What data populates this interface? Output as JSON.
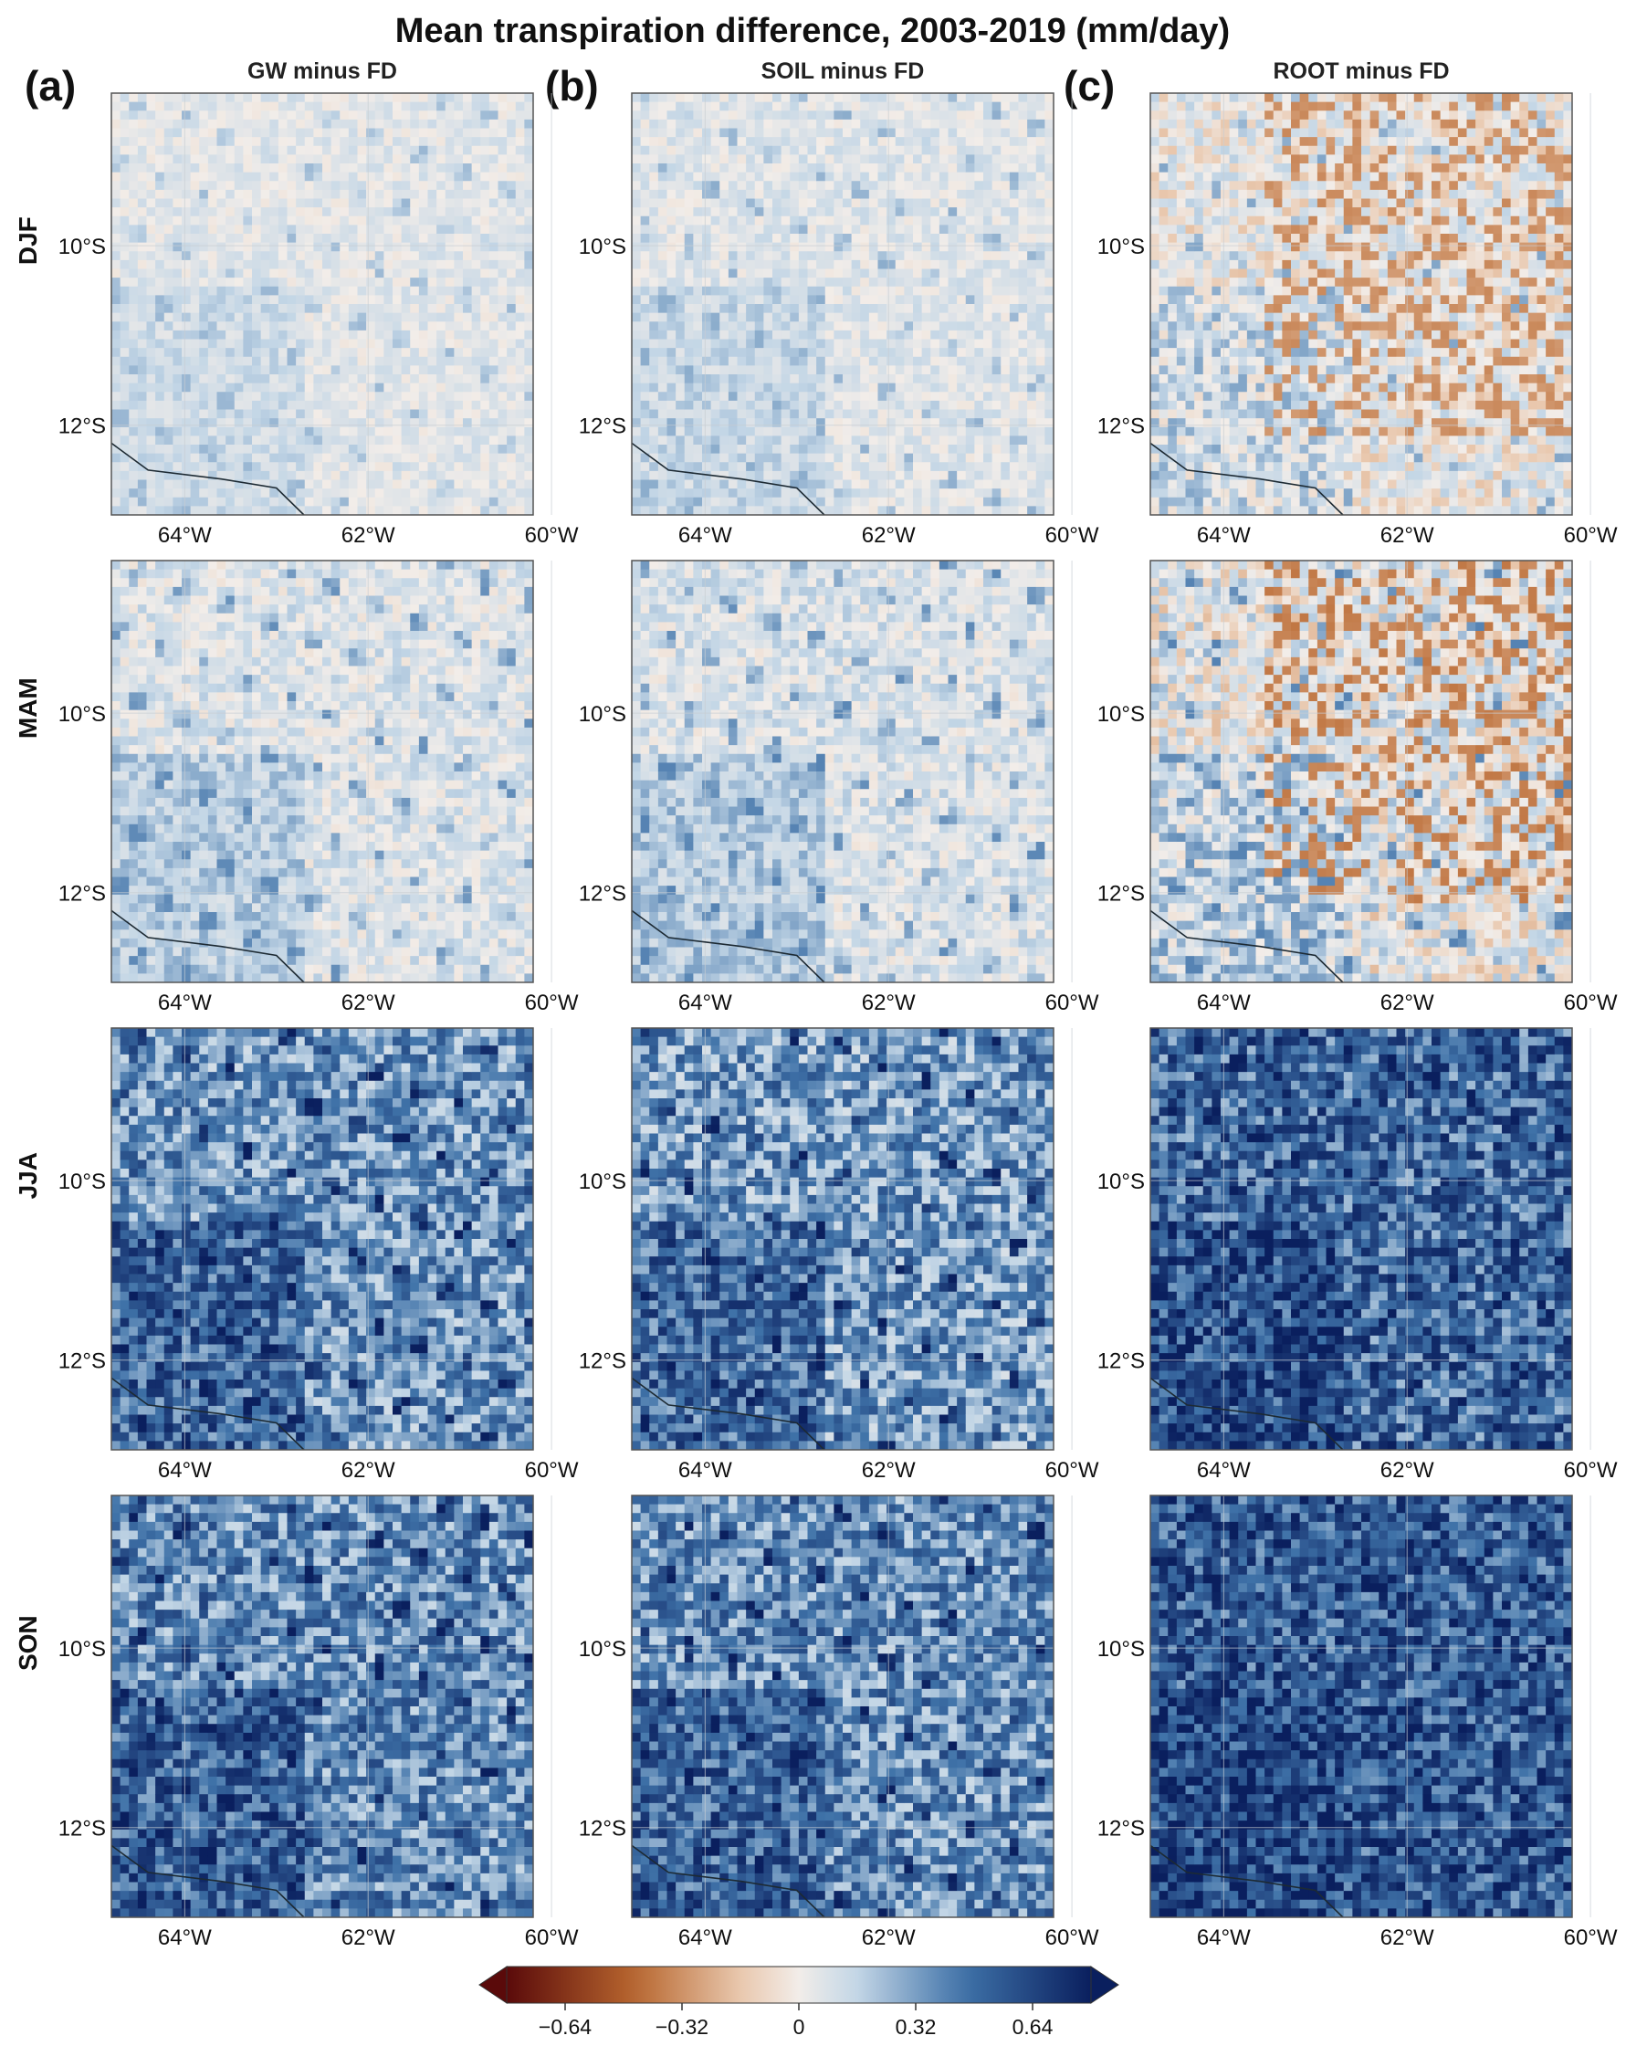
{
  "title": "Mean transpiration difference, 2003-2019 (mm/day)",
  "columns": [
    {
      "letter": "(a)",
      "label": "GW minus FD",
      "key": "gw"
    },
    {
      "letter": "(b)",
      "label": "SOIL minus FD",
      "key": "soil"
    },
    {
      "letter": "(c)",
      "label": "ROOT minus FD",
      "key": "root"
    }
  ],
  "rows": [
    {
      "label": "DJF",
      "key": "djf"
    },
    {
      "label": "MAM",
      "key": "mam"
    },
    {
      "label": "JJA",
      "key": "jja"
    },
    {
      "label": "SON",
      "key": "son"
    }
  ],
  "colors": {
    "neg_end": "#5a0a0a",
    "neg_mid": "#b8662e",
    "neg_light": "#e9c8ae",
    "zero": "#f2ede9",
    "pos_light": "#c3d6e6",
    "pos_mid": "#3f72a8",
    "pos_end": "#0a1f5e",
    "frame": "#555555",
    "grid": "#c7cdd3",
    "border_line": "#1d2a33"
  },
  "chart_data": {
    "type": "heatmap",
    "layout": "small-multiples 4 rows x 3 columns",
    "x_axis": {
      "ticks": [
        "64°W",
        "62°W",
        "60°W"
      ],
      "tick_values": [
        -64,
        -62,
        -60
      ],
      "range": [
        -64.8,
        -60.2
      ]
    },
    "y_axis": {
      "ticks": [
        "10°S",
        "12°S"
      ],
      "tick_values": [
        -10,
        -12
      ],
      "range": [
        -13.0,
        -8.3
      ]
    },
    "grid": true,
    "colorbar": {
      "orientation": "horizontal",
      "placement": "bottom",
      "range": [
        -0.8,
        0.8
      ],
      "ticks": [
        -0.64,
        -0.32,
        0,
        0.32,
        0.64
      ],
      "tick_labels": [
        "−0.64",
        "−0.32",
        "0",
        "0.32",
        "0.64"
      ],
      "extend": "both",
      "colormap": "diverging brown-white-blue (RdBu-like)"
    },
    "panels": [
      {
        "column": "GW minus FD",
        "season": "DJF",
        "approx_mean": 0.05,
        "approx_min": -0.05,
        "approx_max": 0.25
      },
      {
        "column": "SOIL minus FD",
        "season": "DJF",
        "approx_mean": 0.06,
        "approx_min": -0.05,
        "approx_max": 0.28
      },
      {
        "column": "ROOT minus FD",
        "season": "DJF",
        "approx_mean": 0.0,
        "approx_min": -0.35,
        "approx_max": 0.3
      },
      {
        "column": "GW minus FD",
        "season": "MAM",
        "approx_mean": 0.07,
        "approx_min": -0.05,
        "approx_max": 0.38
      },
      {
        "column": "SOIL minus FD",
        "season": "MAM",
        "approx_mean": 0.08,
        "approx_min": -0.05,
        "approx_max": 0.4
      },
      {
        "column": "ROOT minus FD",
        "season": "MAM",
        "approx_mean": 0.02,
        "approx_min": -0.4,
        "approx_max": 0.4
      },
      {
        "column": "GW minus FD",
        "season": "JJA",
        "approx_mean": 0.35,
        "approx_min": -0.1,
        "approx_max": 0.8
      },
      {
        "column": "SOIL minus FD",
        "season": "JJA",
        "approx_mean": 0.33,
        "approx_min": -0.1,
        "approx_max": 0.8
      },
      {
        "column": "ROOT minus FD",
        "season": "JJA",
        "approx_mean": 0.5,
        "approx_min": -0.2,
        "approx_max": 0.8
      },
      {
        "column": "GW minus FD",
        "season": "SON",
        "approx_mean": 0.38,
        "approx_min": -0.1,
        "approx_max": 0.8
      },
      {
        "column": "SOIL minus FD",
        "season": "SON",
        "approx_mean": 0.37,
        "approx_min": -0.1,
        "approx_max": 0.8
      },
      {
        "column": "ROOT minus FD",
        "season": "SON",
        "approx_mean": 0.55,
        "approx_min": -0.15,
        "approx_max": 0.8
      }
    ]
  }
}
